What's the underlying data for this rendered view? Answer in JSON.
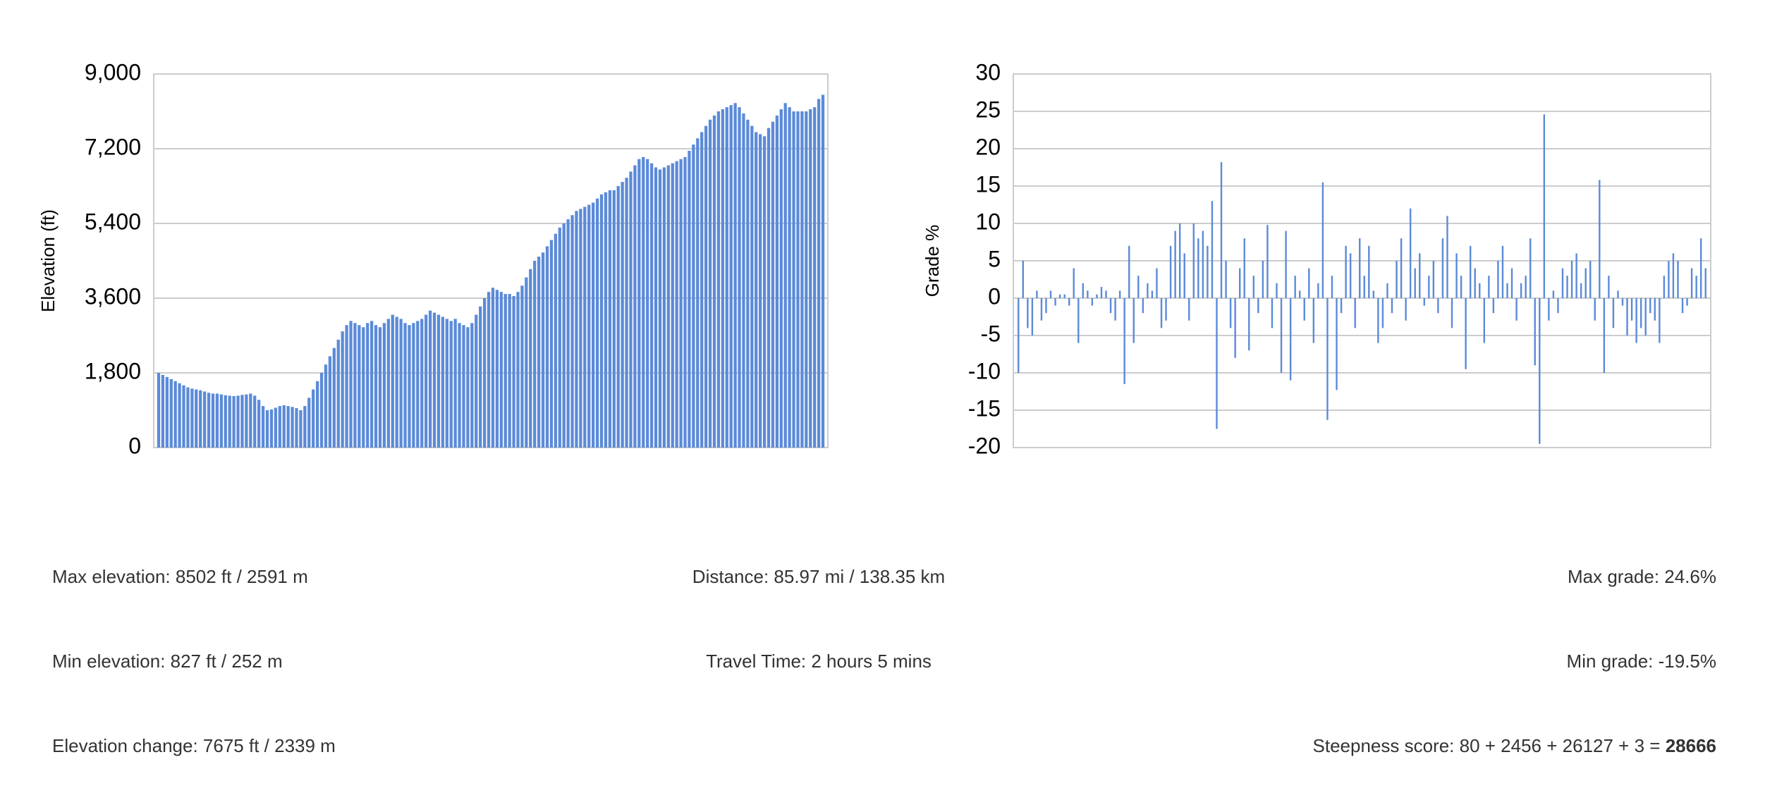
{
  "chart_data": [
    {
      "type": "bar",
      "y_label": "Elevation (ft)",
      "color": "#5b8ad8",
      "grid": true,
      "ylim": [
        0,
        9000
      ],
      "yticks": [
        0,
        {
          "value": 1800,
          "label": "1,800"
        },
        {
          "value": 3600,
          "label": "3,600"
        },
        {
          "value": 5400,
          "label": "5,400"
        },
        {
          "value": 7200,
          "label": "7,200"
        },
        {
          "value": 9000,
          "label": "9,000"
        }
      ],
      "values": [
        1800,
        1750,
        1700,
        1650,
        1600,
        1550,
        1500,
        1450,
        1420,
        1400,
        1380,
        1350,
        1320,
        1300,
        1300,
        1280,
        1260,
        1250,
        1240,
        1250,
        1270,
        1280,
        1300,
        1250,
        1150,
        1000,
        900,
        920,
        960,
        1000,
        1020,
        1000,
        980,
        950,
        900,
        1000,
        1200,
        1400,
        1600,
        1800,
        2000,
        2200,
        2400,
        2600,
        2800,
        2950,
        3050,
        3000,
        2950,
        2900,
        3000,
        3050,
        2950,
        2900,
        3000,
        3100,
        3200,
        3150,
        3100,
        3000,
        2950,
        3000,
        3050,
        3100,
        3200,
        3300,
        3250,
        3200,
        3150,
        3100,
        3050,
        3100,
        3000,
        2950,
        2900,
        3000,
        3200,
        3400,
        3600,
        3750,
        3850,
        3800,
        3750,
        3700,
        3700,
        3650,
        3750,
        3900,
        4100,
        4300,
        4500,
        4600,
        4700,
        4850,
        5000,
        5150,
        5300,
        5400,
        5500,
        5600,
        5700,
        5750,
        5800,
        5850,
        5900,
        6000,
        6100,
        6150,
        6200,
        6200,
        6300,
        6400,
        6500,
        6650,
        6800,
        6950,
        7000,
        6950,
        6850,
        6750,
        6700,
        6750,
        6800,
        6850,
        6900,
        6950,
        7000,
        7150,
        7300,
        7450,
        7600,
        7750,
        7900,
        8000,
        8100,
        8150,
        8200,
        8250,
        8300,
        8200,
        8050,
        7900,
        7750,
        7600,
        7550,
        7500,
        7700,
        7850,
        8000,
        8150,
        8300,
        8200,
        8100,
        8100,
        8100,
        8100,
        8150,
        8200,
        8400,
        8500
      ]
    },
    {
      "type": "bar",
      "y_label": "Grade %",
      "color": "#5b8ad8",
      "grid": true,
      "ylim": [
        -20,
        30
      ],
      "yticks": [
        -20,
        -15,
        -10,
        -5,
        0,
        5,
        10,
        15,
        20,
        25,
        30
      ],
      "values": [
        -10,
        5,
        -4,
        -5,
        1,
        -3,
        -2,
        1,
        -1,
        0.5,
        0.5,
        -1,
        4,
        -6,
        2,
        1,
        -1,
        0.5,
        1.5,
        1,
        -2,
        -3,
        1,
        -11.5,
        7,
        -6,
        3,
        -2,
        2,
        1,
        4,
        -4,
        -3,
        7,
        9,
        10,
        6,
        -3,
        10,
        8,
        9,
        7,
        13,
        -17.5,
        18.2,
        5,
        -4,
        -8,
        4,
        8,
        -7,
        3,
        -2,
        5,
        9.8,
        -4,
        2,
        -10,
        9,
        -11,
        3,
        1,
        -3,
        4,
        -6,
        2,
        15.5,
        -16.3,
        3,
        -12.3,
        -2,
        7,
        6,
        -4,
        8,
        3,
        7,
        1,
        -6,
        -4,
        2,
        -2,
        5,
        8,
        -3,
        12,
        4,
        6,
        -1,
        3,
        5,
        -2,
        8,
        11,
        -4,
        6,
        3,
        -9.5,
        7,
        4,
        2,
        -6,
        3,
        -2,
        5,
        7,
        2,
        4,
        -3,
        2,
        3,
        8,
        -9,
        -19.5,
        24.6,
        -3,
        1,
        -2,
        4,
        3,
        5,
        6,
        2,
        4,
        5,
        -3,
        15.8,
        -10,
        3,
        -4,
        1,
        -1,
        -5,
        -3,
        -6,
        -4,
        -5,
        -2,
        -3,
        -6,
        3,
        5,
        6,
        5,
        -2,
        -1,
        4,
        3,
        8,
        4
      ]
    }
  ],
  "stats": {
    "left": [
      "Max elevation: 8502 ft / 2591 m",
      "Min elevation: 827 ft / 252 m",
      "Elevation change: 7675 ft / 2339 m"
    ],
    "center": [
      "Distance: 85.97 mi / 138.35 km",
      "Travel Time: 2 hours 5 mins"
    ],
    "right": [
      "Max grade: 24.6%",
      "Min grade: -19.5%"
    ],
    "score_text": "Steepness score: 80 + 2456 + 26127 + 3 = ",
    "score_total": "28666"
  }
}
